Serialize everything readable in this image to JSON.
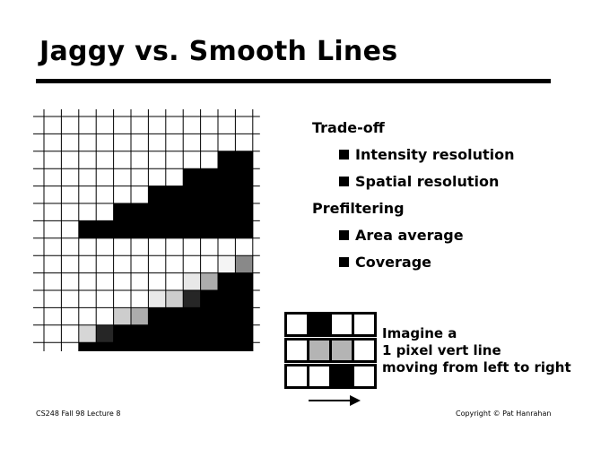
{
  "slide": {
    "title": "Jaggy vs. Smooth Lines",
    "outline": [
      {
        "text": "Trade-off",
        "level": 0
      },
      {
        "text": "Intensity resolution",
        "level": 1
      },
      {
        "text": "Spatial resolution",
        "level": 1
      },
      {
        "text": "Prefiltering",
        "level": 0
      },
      {
        "text": "Area average",
        "level": 1
      },
      {
        "text": "Coverage",
        "level": 1
      }
    ],
    "caption": [
      "Imagine a",
      "1 pixel vert line",
      "moving from left to right"
    ],
    "footer_left": "CS248 Fall 98 Lecture 8",
    "footer_right": "Copyright © Pat Hanrahan"
  },
  "grid": {
    "cols": 12,
    "rows": 14,
    "colors": {
      "0": "#ffffff",
      "1": "#000000",
      "2": "#262626",
      "3": "#cdcdcd",
      "4": "#d6d6d6",
      "5": "#acacac",
      "6": "#e8e8e8",
      "7": "#f4f4f4",
      "8": "#898989"
    },
    "jaggy": [
      [
        0,
        0,
        0,
        0,
        0,
        0,
        0,
        0,
        0,
        0,
        0,
        0
      ],
      [
        0,
        0,
        0,
        0,
        0,
        0,
        0,
        0,
        0,
        0,
        0,
        0
      ],
      [
        0,
        0,
        0,
        0,
        0,
        0,
        0,
        0,
        0,
        0,
        1,
        1
      ],
      [
        0,
        0,
        0,
        0,
        0,
        0,
        0,
        0,
        1,
        1,
        1,
        1
      ],
      [
        0,
        0,
        0,
        0,
        0,
        0,
        1,
        1,
        1,
        1,
        1,
        1
      ],
      [
        0,
        0,
        0,
        0,
        1,
        1,
        1,
        1,
        1,
        1,
        1,
        1
      ],
      [
        0,
        0,
        1,
        1,
        1,
        1,
        1,
        1,
        1,
        1,
        1,
        1
      ]
    ],
    "smooth": [
      [
        0,
        0,
        0,
        0,
        0,
        0,
        0,
        0,
        0,
        0,
        0,
        0
      ],
      [
        0,
        0,
        0,
        0,
        0,
        0,
        0,
        0,
        0,
        0,
        7,
        8
      ],
      [
        0,
        0,
        0,
        0,
        0,
        0,
        0,
        0,
        6,
        5,
        1,
        1
      ],
      [
        0,
        0,
        0,
        0,
        0,
        0,
        6,
        3,
        2,
        1,
        1,
        1
      ],
      [
        0,
        0,
        0,
        0,
        3,
        5,
        1,
        1,
        1,
        1,
        1,
        1
      ],
      [
        0,
        0,
        4,
        2,
        1,
        1,
        1,
        1,
        1,
        1,
        1,
        1
      ],
      [
        0,
        0,
        1,
        1,
        1,
        1,
        1,
        1,
        1,
        1,
        1,
        1
      ]
    ]
  },
  "strips": {
    "colors": {
      "0": "#ffffff",
      "1": "#000000",
      "2": "#b4b4b4"
    },
    "rows": [
      [
        0,
        1,
        0,
        0
      ],
      [
        0,
        2,
        2,
        0
      ],
      [
        0,
        0,
        1,
        0
      ]
    ]
  }
}
